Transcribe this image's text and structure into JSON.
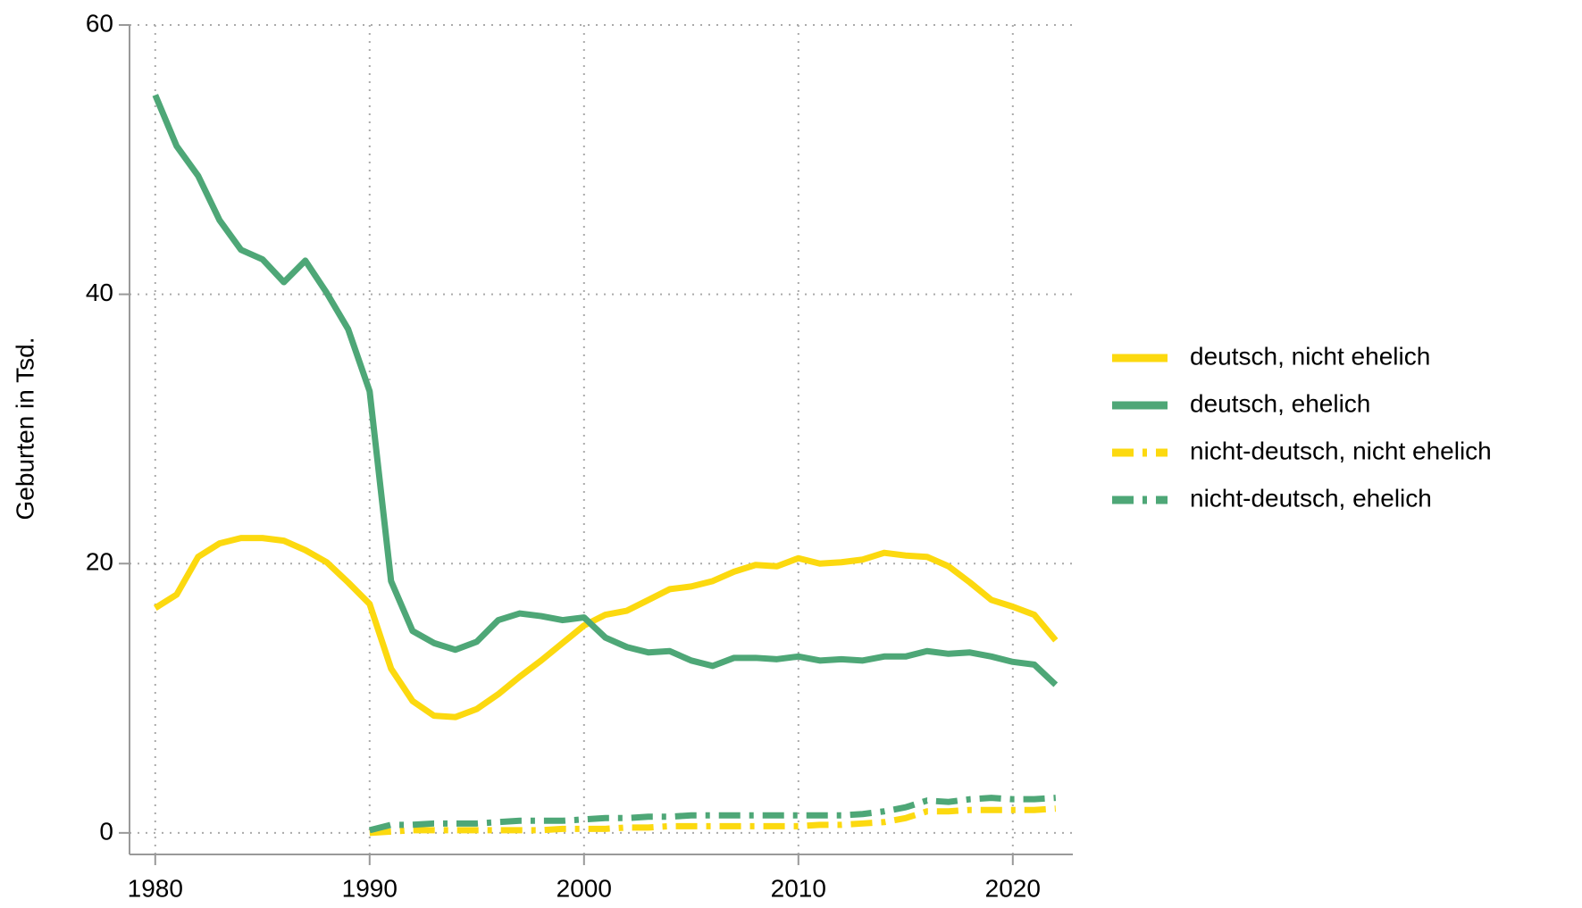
{
  "chart_data": {
    "type": "line",
    "ylabel": "Geburten in Tsd.",
    "x": [
      1980,
      1981,
      1982,
      1983,
      1984,
      1985,
      1986,
      1987,
      1988,
      1989,
      1990,
      1991,
      1992,
      1993,
      1994,
      1995,
      1996,
      1997,
      1998,
      1999,
      2000,
      2001,
      2002,
      2003,
      2004,
      2005,
      2006,
      2007,
      2008,
      2009,
      2010,
      2011,
      2012,
      2013,
      2014,
      2015,
      2016,
      2017,
      2018,
      2019,
      2020,
      2021,
      2022
    ],
    "series": [
      {
        "name": "deutsch, nicht ehelich",
        "color": "#fcd90f",
        "style": "solid",
        "values": [
          16.7,
          17.7,
          20.5,
          21.5,
          21.9,
          21.9,
          21.7,
          21.0,
          20.1,
          18.6,
          17.0,
          12.2,
          9.8,
          8.7,
          8.6,
          9.2,
          10.3,
          11.6,
          12.8,
          14.1,
          15.4,
          16.2,
          16.5,
          17.3,
          18.1,
          18.3,
          18.7,
          19.4,
          19.9,
          19.8,
          20.4,
          20.0,
          20.1,
          20.3,
          20.8,
          20.6,
          20.5,
          19.8,
          18.6,
          17.3,
          16.8,
          16.2,
          14.3
        ]
      },
      {
        "name": "deutsch, ehelich",
        "color": "#4ea777",
        "style": "solid",
        "values": [
          54.8,
          51.0,
          48.8,
          45.5,
          43.3,
          42.6,
          40.9,
          42.5,
          40.1,
          37.4,
          32.8,
          18.7,
          15.0,
          14.1,
          13.6,
          14.2,
          15.8,
          16.3,
          16.1,
          15.8,
          16.0,
          14.5,
          13.8,
          13.4,
          13.5,
          12.8,
          12.4,
          13.0,
          13.0,
          12.9,
          13.1,
          12.8,
          12.9,
          12.8,
          13.1,
          13.1,
          13.5,
          13.3,
          13.4,
          13.1,
          12.7,
          12.5,
          11.0
        ]
      },
      {
        "name": "nicht-deutsch, nicht ehelich",
        "color": "#fcd90f",
        "style": "dashdot",
        "values": [
          null,
          null,
          null,
          null,
          null,
          null,
          null,
          null,
          null,
          null,
          0.0,
          0.1,
          0.2,
          0.2,
          0.2,
          0.2,
          0.2,
          0.2,
          0.2,
          0.3,
          0.3,
          0.3,
          0.4,
          0.4,
          0.5,
          0.5,
          0.5,
          0.5,
          0.5,
          0.5,
          0.5,
          0.6,
          0.6,
          0.7,
          0.8,
          1.1,
          1.6,
          1.6,
          1.7,
          1.7,
          1.7,
          1.7,
          1.8
        ]
      },
      {
        "name": "nicht-deutsch, ehelich",
        "color": "#4ea777",
        "style": "dashdot",
        "values": [
          null,
          null,
          null,
          null,
          null,
          null,
          null,
          null,
          null,
          null,
          0.2,
          0.6,
          0.6,
          0.7,
          0.7,
          0.7,
          0.8,
          0.9,
          0.9,
          0.9,
          1.0,
          1.1,
          1.1,
          1.2,
          1.2,
          1.3,
          1.3,
          1.3,
          1.3,
          1.3,
          1.3,
          1.3,
          1.3,
          1.4,
          1.6,
          1.9,
          2.4,
          2.3,
          2.5,
          2.6,
          2.5,
          2.5,
          2.6
        ]
      }
    ],
    "xlim": [
      1978.8,
      2022.8
    ],
    "xticks": [
      1980,
      1990,
      2000,
      2010,
      2020
    ],
    "ylim": [
      -1.6,
      60
    ],
    "yticks": [
      0,
      20,
      40,
      60
    ],
    "grid": true,
    "legend": "right"
  }
}
